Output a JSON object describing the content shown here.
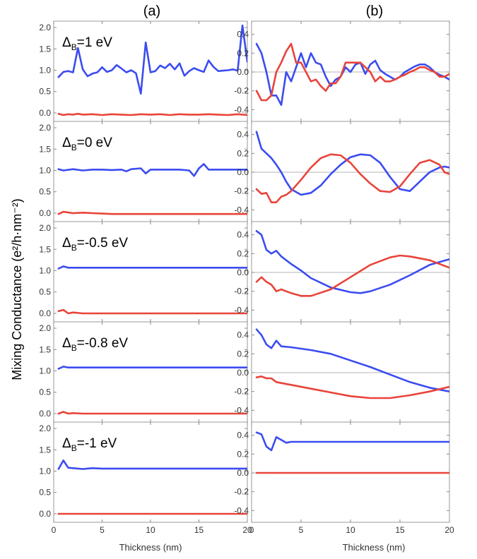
{
  "figure": {
    "column_titles": [
      "(a)",
      "(b)"
    ],
    "ylabel": "Mixing Conductance (e²/h·nm⁻²)",
    "xlabel": "Thickness (nm)"
  },
  "colors": {
    "blue": "#3b4cf0",
    "red": "#e8443a",
    "frame": "#9a9a9a"
  },
  "chart_data": [
    {
      "type": "line",
      "panel": "a-row1",
      "annotation": {
        "delta": "Δ",
        "sub": "B",
        "rest": "=1 eV"
      },
      "xlim": [
        0,
        20
      ],
      "ylim": [
        -0.1,
        2.05
      ],
      "xticks": [
        0,
        5,
        10,
        15,
        20
      ],
      "yticks": [
        0.0,
        0.5,
        1.0,
        1.5,
        2.0
      ],
      "series": [
        {
          "color": "blue",
          "x": [
            0.5,
            1,
            1.5,
            2,
            2.5,
            3,
            3.5,
            4,
            4.5,
            5,
            5.5,
            6,
            6.5,
            7,
            7.5,
            8,
            8.5,
            9,
            9.5,
            10,
            10.5,
            11,
            11.5,
            12,
            12.5,
            13,
            13.5,
            14,
            14.5,
            15,
            15.5,
            16,
            16.5,
            17,
            17.5,
            18,
            18.5,
            19,
            19.5,
            20
          ],
          "y": [
            0.84,
            0.96,
            0.98,
            0.95,
            1.52,
            1.02,
            0.86,
            0.92,
            0.95,
            1.07,
            0.96,
            1.0,
            1.12,
            1.04,
            0.95,
            1.0,
            0.93,
            0.45,
            1.65,
            0.95,
            0.98,
            1.11,
            1.05,
            1.15,
            1.02,
            1.16,
            0.87,
            0.98,
            1.05,
            1.0,
            0.96,
            1.23,
            1.08,
            0.98,
            0.99,
            1.0,
            1.02,
            0.99,
            2.05,
            1.2
          ]
        },
        {
          "color": "red",
          "x": [
            0.5,
            1,
            1.5,
            2,
            2.5,
            3,
            4,
            5,
            6,
            7,
            8,
            9,
            10,
            11,
            12,
            13,
            14,
            15,
            16,
            17,
            18,
            19,
            20
          ],
          "y": [
            -0.02,
            -0.05,
            -0.03,
            -0.04,
            -0.02,
            -0.04,
            -0.03,
            -0.05,
            -0.03,
            -0.04,
            -0.05,
            -0.03,
            -0.04,
            -0.03,
            -0.05,
            -0.03,
            -0.04,
            -0.04,
            -0.03,
            -0.04,
            -0.05,
            -0.03,
            -0.05
          ]
        }
      ]
    },
    {
      "type": "line",
      "panel": "b-row1",
      "xlim": [
        0,
        20
      ],
      "ylim": [
        -0.48,
        0.48
      ],
      "xticks": [
        0,
        5,
        10,
        15,
        20
      ],
      "yticks": [
        -0.4,
        -0.2,
        0.0,
        0.2,
        0.4
      ],
      "series": [
        {
          "color": "blue",
          "x": [
            0.5,
            1,
            1.5,
            2,
            2.5,
            3,
            3.5,
            4,
            4.5,
            5,
            5.5,
            6,
            6.5,
            7,
            7.5,
            8,
            8.5,
            9,
            9.5,
            10,
            10.5,
            11,
            11.5,
            12,
            12.5,
            13,
            13.5,
            14,
            14.5,
            15,
            15.5,
            16,
            16.5,
            17,
            17.5,
            18,
            18.5,
            19,
            19.5,
            20
          ],
          "y": [
            0.3,
            0.2,
            0.0,
            -0.25,
            -0.25,
            -0.35,
            0.0,
            -0.1,
            0.05,
            0.2,
            0.05,
            0.2,
            0.1,
            0.08,
            -0.05,
            -0.15,
            -0.08,
            -0.05,
            0.05,
            0.0,
            0.08,
            0.1,
            -0.02,
            0.08,
            0.12,
            0.02,
            -0.02,
            -0.05,
            -0.08,
            -0.05,
            0.0,
            0.03,
            0.06,
            0.08,
            0.08,
            0.05,
            0.0,
            -0.03,
            -0.05,
            -0.08
          ]
        },
        {
          "color": "red",
          "x": [
            0.5,
            1,
            1.5,
            2,
            2.5,
            3,
            3.5,
            4,
            4.5,
            5,
            5.5,
            6,
            6.5,
            7,
            7.5,
            8,
            8.5,
            9,
            9.5,
            10,
            10.5,
            11,
            11.5,
            12,
            12.5,
            13,
            13.5,
            14,
            14.5,
            15,
            15.5,
            16,
            16.5,
            17,
            17.5,
            18,
            18.5,
            19,
            19.5,
            20
          ],
          "y": [
            -0.2,
            -0.3,
            -0.3,
            -0.25,
            0.0,
            0.1,
            0.22,
            0.3,
            0.1,
            0.1,
            0.0,
            -0.1,
            -0.08,
            -0.15,
            -0.2,
            -0.12,
            -0.12,
            -0.05,
            0.1,
            0.1,
            0.1,
            0.1,
            0.05,
            0.0,
            -0.1,
            -0.05,
            -0.1,
            -0.1,
            -0.08,
            -0.05,
            -0.03,
            0.0,
            0.02,
            0.05,
            0.05,
            0.02,
            0.0,
            -0.05,
            -0.05,
            -0.02
          ]
        }
      ]
    },
    {
      "type": "line",
      "panel": "a-row2",
      "annotation": {
        "delta": "Δ",
        "sub": "B",
        "rest": "=0 eV"
      },
      "xlim": [
        0,
        20
      ],
      "ylim": [
        -0.1,
        2.05
      ],
      "xticks": [
        0,
        5,
        10,
        15,
        20
      ],
      "yticks": [
        0.0,
        0.5,
        1.0,
        1.5,
        2.0
      ],
      "series": [
        {
          "color": "blue",
          "x": [
            0.5,
            1,
            2,
            3,
            4,
            5,
            6,
            7,
            7.5,
            8,
            9,
            9.5,
            10,
            11,
            12,
            13,
            14,
            14.5,
            15,
            15.5,
            16,
            17,
            18,
            19,
            20
          ],
          "y": [
            1.03,
            1.0,
            1.03,
            1.0,
            1.02,
            1.02,
            1.01,
            1.02,
            0.98,
            1.03,
            1.05,
            0.93,
            1.02,
            1.02,
            1.02,
            1.02,
            1.0,
            0.87,
            1.05,
            1.15,
            1.02,
            1.02,
            1.02,
            1.02,
            1.02
          ]
        },
        {
          "color": "red",
          "x": [
            0.5,
            1,
            2,
            3,
            4,
            5,
            6,
            7,
            8,
            9,
            10,
            11,
            12,
            13,
            14,
            15,
            16,
            17,
            18,
            19,
            20
          ],
          "y": [
            -0.02,
            0.03,
            0.0,
            0.01,
            0.0,
            -0.01,
            -0.02,
            -0.02,
            -0.02,
            -0.02,
            -0.02,
            -0.02,
            -0.02,
            -0.02,
            -0.02,
            -0.02,
            -0.02,
            -0.02,
            -0.02,
            -0.02,
            -0.02
          ]
        }
      ]
    },
    {
      "type": "line",
      "panel": "b-row2",
      "xlim": [
        0,
        20
      ],
      "ylim": [
        -0.48,
        0.48
      ],
      "xticks": [
        0,
        5,
        10,
        15,
        20
      ],
      "yticks": [
        -0.4,
        -0.2,
        0.0,
        0.2,
        0.4
      ],
      "series": [
        {
          "color": "blue",
          "x": [
            0.5,
            1,
            1.5,
            2,
            2.5,
            3,
            3.5,
            4,
            5,
            6,
            7,
            8,
            9,
            10,
            11,
            12,
            13,
            14,
            15,
            16,
            17,
            18,
            19,
            19.5,
            20
          ],
          "y": [
            0.43,
            0.25,
            0.2,
            0.15,
            0.08,
            0.0,
            -0.1,
            -0.18,
            -0.24,
            -0.22,
            -0.14,
            -0.02,
            0.08,
            0.16,
            0.19,
            0.18,
            0.1,
            -0.05,
            -0.18,
            -0.2,
            -0.1,
            0.0,
            0.05,
            0.06,
            0.05
          ]
        },
        {
          "color": "red",
          "x": [
            0.5,
            1,
            1.5,
            2,
            2.5,
            3,
            3.5,
            4,
            5,
            6,
            7,
            8,
            9,
            10,
            11,
            12,
            13,
            14,
            15,
            16,
            17,
            18,
            19,
            19.5,
            20
          ],
          "y": [
            -0.18,
            -0.23,
            -0.22,
            -0.32,
            -0.32,
            -0.26,
            -0.24,
            -0.2,
            -0.08,
            0.05,
            0.15,
            0.19,
            0.18,
            0.1,
            -0.02,
            -0.12,
            -0.2,
            -0.21,
            -0.15,
            -0.02,
            0.1,
            0.13,
            0.08,
            0.0,
            -0.02
          ]
        }
      ]
    },
    {
      "type": "line",
      "panel": "a-row3",
      "annotation": {
        "delta": "Δ",
        "sub": "B",
        "rest": "=-0.5 eV"
      },
      "xlim": [
        0,
        20
      ],
      "ylim": [
        -0.1,
        2.05
      ],
      "xticks": [
        0,
        5,
        10,
        15,
        20
      ],
      "yticks": [
        0.0,
        0.5,
        1.0,
        1.5,
        2.0
      ],
      "series": [
        {
          "color": "blue",
          "x": [
            0.5,
            1,
            1.5,
            2,
            3,
            5,
            10,
            15,
            20
          ],
          "y": [
            1.05,
            1.1,
            1.07,
            1.07,
            1.07,
            1.07,
            1.07,
            1.07,
            1.07
          ]
        },
        {
          "color": "red",
          "x": [
            0.5,
            1,
            1.5,
            2,
            3,
            5,
            10,
            15,
            20
          ],
          "y": [
            0.05,
            0.08,
            0.0,
            0.02,
            0.0,
            0.0,
            0.0,
            0.0,
            0.0
          ]
        }
      ]
    },
    {
      "type": "line",
      "panel": "b-row3",
      "xlim": [
        0,
        20
      ],
      "ylim": [
        -0.48,
        0.48
      ],
      "xticks": [
        0,
        5,
        10,
        15,
        20
      ],
      "yticks": [
        -0.4,
        -0.2,
        0.0,
        0.2,
        0.4
      ],
      "series": [
        {
          "color": "blue",
          "x": [
            0.5,
            1,
            1.5,
            2,
            2.5,
            3,
            4,
            5,
            6,
            8,
            10,
            11,
            12,
            14,
            16,
            18,
            20
          ],
          "y": [
            0.44,
            0.4,
            0.24,
            0.2,
            0.23,
            0.17,
            0.09,
            0.02,
            -0.06,
            -0.16,
            -0.21,
            -0.22,
            -0.2,
            -0.13,
            -0.03,
            0.08,
            0.14
          ]
        },
        {
          "color": "red",
          "x": [
            0.5,
            1,
            1.5,
            2,
            2.5,
            3,
            3.5,
            4,
            5,
            6,
            8,
            10,
            12,
            14,
            15,
            16,
            18,
            20
          ],
          "y": [
            -0.1,
            -0.05,
            -0.1,
            -0.13,
            -0.2,
            -0.18,
            -0.2,
            -0.22,
            -0.25,
            -0.25,
            -0.18,
            -0.05,
            0.08,
            0.16,
            0.18,
            0.17,
            0.13,
            0.05
          ]
        }
      ]
    },
    {
      "type": "line",
      "panel": "a-row4",
      "annotation": {
        "delta": "Δ",
        "sub": "B",
        "rest": "=-0.8 eV"
      },
      "xlim": [
        0,
        20
      ],
      "ylim": [
        -0.1,
        2.05
      ],
      "xticks": [
        0,
        5,
        10,
        15,
        20
      ],
      "yticks": [
        0.0,
        0.5,
        1.0,
        1.5,
        2.0
      ],
      "series": [
        {
          "color": "blue",
          "x": [
            0.5,
            1,
            1.5,
            2,
            3,
            5,
            10,
            15,
            20
          ],
          "y": [
            1.05,
            1.1,
            1.08,
            1.08,
            1.08,
            1.08,
            1.08,
            1.08,
            1.08
          ]
        },
        {
          "color": "red",
          "x": [
            0.5,
            1,
            1.5,
            2,
            3,
            5,
            10,
            15,
            20
          ],
          "y": [
            0.0,
            0.04,
            0.0,
            0.01,
            0.0,
            0.0,
            0.0,
            0.0,
            0.0
          ]
        }
      ]
    },
    {
      "type": "line",
      "panel": "b-row4",
      "xlim": [
        0,
        20
      ],
      "ylim": [
        -0.48,
        0.48
      ],
      "xticks": [
        0,
        5,
        10,
        15,
        20
      ],
      "yticks": [
        -0.4,
        -0.2,
        0.0,
        0.2,
        0.4
      ],
      "series": [
        {
          "color": "blue",
          "x": [
            0.5,
            1,
            1.5,
            2,
            2.5,
            3,
            4,
            6,
            8,
            10,
            12,
            14,
            16,
            18,
            20
          ],
          "y": [
            0.46,
            0.4,
            0.3,
            0.26,
            0.34,
            0.28,
            0.27,
            0.24,
            0.2,
            0.13,
            0.06,
            -0.02,
            -0.1,
            -0.16,
            -0.2
          ]
        },
        {
          "color": "red",
          "x": [
            0.5,
            1,
            1.5,
            2,
            2.5,
            3,
            4,
            6,
            8,
            10,
            12,
            14,
            16,
            18,
            20
          ],
          "y": [
            -0.05,
            -0.04,
            -0.06,
            -0.06,
            -0.1,
            -0.11,
            -0.13,
            -0.17,
            -0.21,
            -0.25,
            -0.27,
            -0.27,
            -0.24,
            -0.2,
            -0.15
          ]
        }
      ]
    },
    {
      "type": "line",
      "panel": "a-row5",
      "annotation": {
        "delta": "Δ",
        "sub": "B",
        "rest": "=-1 eV"
      },
      "xlim": [
        0,
        20
      ],
      "ylim": [
        -0.1,
        2.05
      ],
      "xticks": [
        0,
        5,
        10,
        15,
        20
      ],
      "yticks": [
        0.0,
        0.5,
        1.0,
        1.5,
        2.0
      ],
      "series": [
        {
          "color": "blue",
          "x": [
            0.5,
            1,
            1.5,
            2,
            3,
            4,
            5,
            10,
            15,
            20
          ],
          "y": [
            1.05,
            1.25,
            1.08,
            1.07,
            1.05,
            1.07,
            1.06,
            1.06,
            1.06,
            1.06
          ]
        },
        {
          "color": "red",
          "x": [
            0.5,
            20
          ],
          "y": [
            0.0,
            0.0
          ]
        }
      ]
    },
    {
      "type": "line",
      "panel": "b-row5",
      "xlim": [
        0,
        20
      ],
      "ylim": [
        -0.48,
        0.48
      ],
      "xticks": [
        0,
        5,
        10,
        15,
        20
      ],
      "yticks": [
        -0.4,
        -0.2,
        0.0,
        0.2,
        0.4
      ],
      "series": [
        {
          "color": "blue",
          "x": [
            0.5,
            1,
            1.5,
            2,
            2.5,
            3,
            3.5,
            4,
            5,
            6,
            10,
            15,
            20
          ],
          "y": [
            0.43,
            0.41,
            0.28,
            0.24,
            0.38,
            0.35,
            0.32,
            0.33,
            0.33,
            0.33,
            0.33,
            0.33,
            0.33
          ]
        },
        {
          "color": "red",
          "x": [
            0.5,
            20
          ],
          "y": [
            0.0,
            0.0
          ]
        }
      ]
    }
  ]
}
